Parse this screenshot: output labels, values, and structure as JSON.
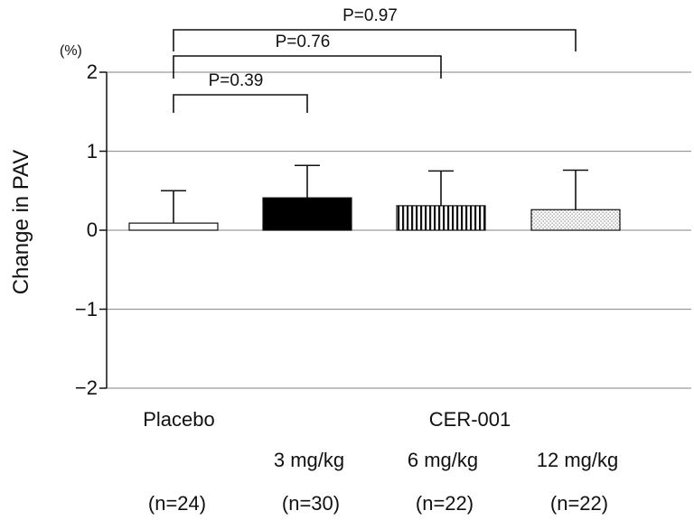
{
  "chart_data": {
    "type": "bar",
    "ylabel": "Change in PAV",
    "yunit": "(%)",
    "ylim": [
      -2,
      2
    ],
    "yticks": [
      "2",
      "1",
      "0",
      "−1",
      "−2"
    ],
    "ytick_values": [
      2,
      1,
      0,
      -1,
      -2
    ],
    "grid": true,
    "group_label": "CER-001",
    "categories": [
      {
        "label": "Placebo",
        "dose": "",
        "n": "(n=24)",
        "value": 0.09,
        "error": 0.41,
        "fill": "white"
      },
      {
        "label": "",
        "dose": "3 mg/kg",
        "n": "(n=30)",
        "value": 0.41,
        "error": 0.41,
        "fill": "black"
      },
      {
        "label": "",
        "dose": "6 mg/kg",
        "n": "(n=22)",
        "value": 0.31,
        "error": 0.44,
        "fill": "vertical-stripes"
      },
      {
        "label": "",
        "dose": "12 mg/kg",
        "n": "(n=22)",
        "value": 0.26,
        "error": 0.5,
        "fill": "dots"
      }
    ],
    "comparisons": [
      {
        "from": 0,
        "to": 1,
        "label": "P=0.39"
      },
      {
        "from": 0,
        "to": 2,
        "label": "P=0.76"
      },
      {
        "from": 0,
        "to": 3,
        "label": "P=0.97"
      }
    ]
  }
}
